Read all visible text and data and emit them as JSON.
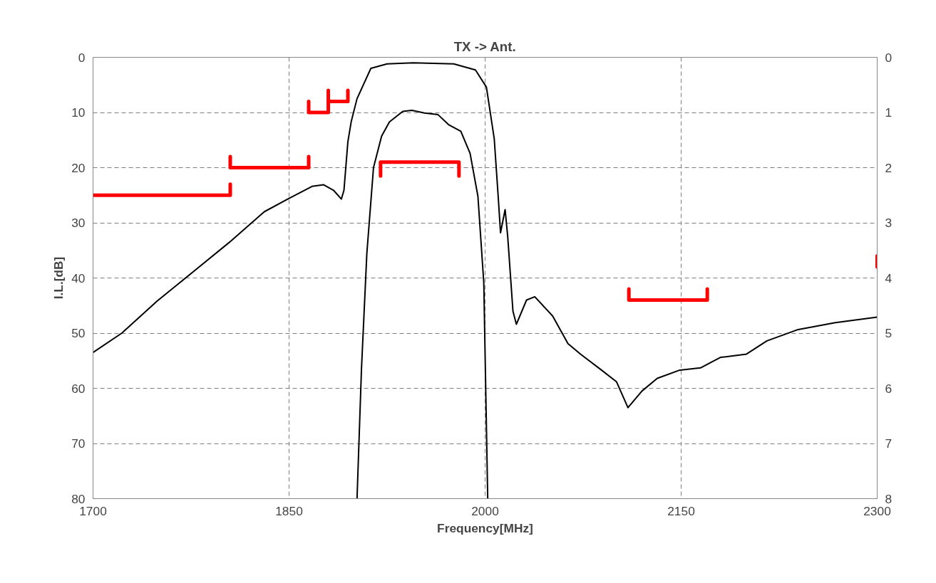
{
  "chart_data": {
    "type": "line",
    "title": "TX -> Ant.",
    "xlabel": "Frequency[MHz]",
    "ylabel": "I.L.[dB]",
    "xlim": [
      1700,
      2300
    ],
    "xticks": [
      1700,
      1850,
      2000,
      2150,
      2300
    ],
    "ylim": [
      80,
      0
    ],
    "yticks": [
      0,
      10,
      20,
      30,
      40,
      50,
      60,
      70,
      80
    ],
    "y2lim": [
      8,
      0
    ],
    "y2ticks": [
      0,
      1,
      2,
      3,
      4,
      5,
      6,
      7,
      8
    ],
    "grid": true,
    "line_style": "solid",
    "marker": "none",
    "series": [
      {
        "color": "#000000",
        "x": [
          1700,
          1722,
          1749,
          1776.5,
          1804,
          1831,
          1849,
          1867.6,
          1876.5,
          1884,
          1890,
          1892,
          1895,
          1897.6,
          1902,
          1912.6,
          1925,
          1945,
          1976,
          1992.6,
          2001,
          2007,
          2010,
          2011.8,
          2015.3,
          2017.3,
          2021.3,
          2023.9,
          2031.7,
          2038,
          2051.7,
          2063.4,
          2073,
          2088.5,
          2100.5,
          2109.3,
          2120,
          2131.7,
          2149,
          2164.8,
          2180,
          2200,
          2215.6,
          2238.8,
          2268,
          2300
        ],
        "values": [
          53.5,
          50.0,
          44.2,
          38.9,
          33.6,
          28.0,
          25.7,
          23.4,
          23.1,
          24.1,
          25.7,
          24.1,
          15.3,
          11.6,
          7.5,
          2.0,
          1.2,
          1.0,
          1.2,
          2.3,
          5.4,
          14.8,
          25.2,
          31.8,
          27.6,
          32.5,
          46.0,
          48.4,
          44.0,
          43.4,
          46.9,
          51.9,
          53.8,
          56.6,
          58.8,
          63.5,
          60.5,
          58.2,
          56.7,
          56.3,
          54.4,
          53.8,
          51.4,
          49.4,
          48.1,
          47.1
        ]
      },
      {
        "color": "#000000",
        "axis": "y2",
        "x": [
          1902,
          1905.4,
          1909.5,
          1914.6,
          1920.8,
          1926.8,
          1937,
          1944,
          1953.6,
          1964,
          1972,
          1981.4,
          1988.5,
          1994.5,
          1999,
          2002
        ],
        "values": [
          8.0,
          5.65,
          3.56,
          2.0,
          1.43,
          1.17,
          0.98,
          0.96,
          1.01,
          1.04,
          1.22,
          1.34,
          1.74,
          2.52,
          4.09,
          8.0
        ]
      },
      {
        "color": "#ff0000",
        "x": [
          1700,
          1805,
          1805
        ],
        "values": [
          25,
          25,
          23
        ]
      },
      {
        "color": "#ff0000",
        "x": [
          1805,
          1805,
          1865,
          1865
        ],
        "values": [
          18,
          20,
          20,
          18
        ]
      },
      {
        "color": "#ff0000",
        "x": [
          1865,
          1865,
          1880,
          1880,
          1880,
          1895,
          1895
        ],
        "values": [
          8,
          10,
          10,
          6,
          8,
          8,
          6
        ]
      },
      {
        "color": "#ff0000",
        "axis": "y2",
        "x": [
          1920,
          1920,
          1980,
          1980
        ],
        "values": [
          2.15,
          1.9,
          1.9,
          2.15
        ]
      },
      {
        "color": "#ff0000",
        "x": [
          2110,
          2110,
          2170,
          2170
        ],
        "values": [
          42,
          44,
          44,
          42
        ]
      },
      {
        "color": "#ff0000",
        "x": [
          2300,
          2300
        ],
        "values": [
          36,
          38
        ]
      }
    ]
  }
}
